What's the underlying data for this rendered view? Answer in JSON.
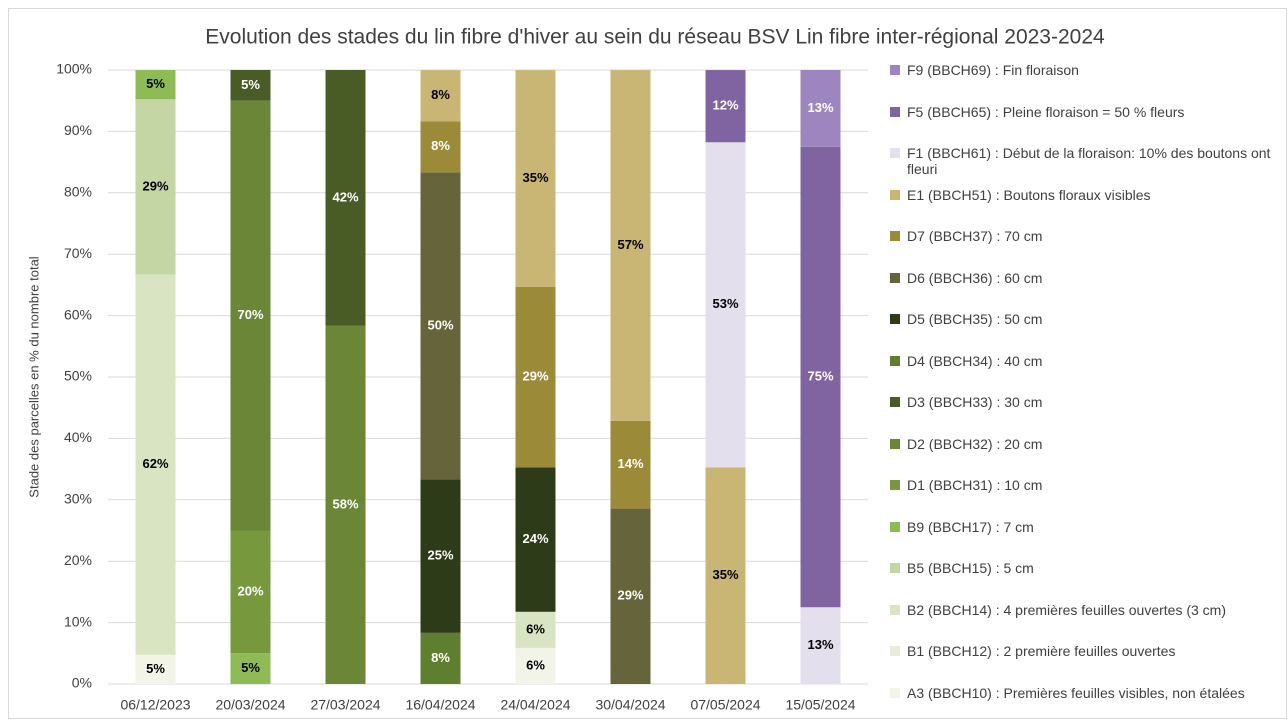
{
  "chart_data": {
    "type": "stacked_bar",
    "title": "Evolution des stades du lin fibre d'hiver au sein du réseau BSV Lin fibre inter-régional 2023-2024",
    "y_label": "Stade des parcelles en % du nombre total",
    "categories": [
      "06/12/2023",
      "20/03/2024",
      "27/03/2024",
      "16/04/2024",
      "24/04/2024",
      "30/04/2024",
      "07/05/2024",
      "15/05/2024"
    ],
    "ylim": [
      0,
      100
    ],
    "yticks": [
      {
        "value": 0,
        "label": "0%"
      },
      {
        "value": 10,
        "label": "10%"
      },
      {
        "value": 20,
        "label": "20%"
      },
      {
        "value": 30,
        "label": "30%"
      },
      {
        "value": 40,
        "label": "40%"
      },
      {
        "value": 50,
        "label": "50%"
      },
      {
        "value": 60,
        "label": "60%"
      },
      {
        "value": 70,
        "label": "70%"
      },
      {
        "value": 80,
        "label": "80%"
      },
      {
        "value": 90,
        "label": "90%"
      },
      {
        "value": 100,
        "label": "100%"
      }
    ],
    "grid": true,
    "legend": "right",
    "series": [
      {
        "name": "F9 (BBCH69) : Fin floraison",
        "color": "#9d86bf",
        "values": [
          null,
          null,
          null,
          null,
          null,
          null,
          null,
          12.5
        ],
        "value_labels": [
          null,
          null,
          null,
          null,
          null,
          null,
          null,
          "13%"
        ]
      },
      {
        "name": "F5 (BBCH65) : Pleine floraison = 50 % fleurs",
        "color": "#8064a2",
        "values": [
          null,
          null,
          null,
          null,
          null,
          null,
          11.76,
          75
        ],
        "value_labels": [
          null,
          null,
          null,
          null,
          null,
          null,
          "12%",
          "75%"
        ]
      },
      {
        "name": "F1 (BBCH61) : Début de la floraison: 10% des boutons ont fleuri",
        "color": "#e4dfec",
        "values": [
          null,
          null,
          null,
          null,
          null,
          null,
          52.94,
          12.5
        ],
        "value_labels": [
          null,
          null,
          null,
          null,
          null,
          null,
          "53%",
          "13%"
        ]
      },
      {
        "name": "E1 (BBCH51) : Boutons floraux visibles",
        "color": "#c9b574",
        "values": [
          null,
          null,
          null,
          8.33,
          35.29,
          57.14,
          35.29,
          null
        ],
        "value_labels": [
          null,
          null,
          null,
          "8%",
          "35%",
          "57%",
          "35%",
          null
        ]
      },
      {
        "name": "D7 (BBCH37) : 70 cm",
        "color": "#9b8a38",
        "values": [
          null,
          null,
          null,
          8.33,
          29.41,
          14.29,
          null,
          null
        ],
        "value_labels": [
          null,
          null,
          null,
          "8%",
          "29%",
          "14%",
          null,
          null
        ]
      },
      {
        "name": "D6 (BBCH36) : 60 cm",
        "color": "#66643b",
        "values": [
          null,
          null,
          null,
          50,
          null,
          28.57,
          null,
          null
        ],
        "value_labels": [
          null,
          null,
          null,
          "50%",
          null,
          "29%",
          null,
          null
        ]
      },
      {
        "name": "D5 (BBCH35) : 50 cm",
        "color": "#2e3b19",
        "values": [
          null,
          null,
          null,
          25,
          23.53,
          null,
          null,
          null
        ],
        "value_labels": [
          null,
          null,
          null,
          "25%",
          "24%",
          null,
          null,
          null
        ]
      },
      {
        "name": "D4 (BBCH34) : 40 cm",
        "color": "#5f7f30",
        "values": [
          null,
          null,
          null,
          8.33,
          null,
          null,
          null,
          null
        ],
        "value_labels": [
          null,
          null,
          null,
          "8%",
          null,
          null,
          null,
          null
        ]
      },
      {
        "name": "D3 (BBCH33) : 30 cm",
        "color": "#4a5c26",
        "values": [
          null,
          5,
          41.67,
          null,
          null,
          null,
          null,
          null
        ],
        "value_labels": [
          null,
          "5%",
          "42%",
          null,
          null,
          null,
          null,
          null
        ]
      },
      {
        "name": "D2 (BBCH32) : 20 cm",
        "color": "#6a8636",
        "values": [
          null,
          70,
          58.33,
          null,
          null,
          null,
          null,
          null
        ],
        "value_labels": [
          null,
          "70%",
          "58%",
          null,
          null,
          null,
          null,
          null
        ]
      },
      {
        "name": "D1 (BBCH31) : 10 cm",
        "color": "#77983c",
        "values": [
          null,
          20,
          null,
          null,
          null,
          null,
          null,
          null
        ],
        "value_labels": [
          null,
          "20%",
          null,
          null,
          null,
          null,
          null,
          null
        ]
      },
      {
        "name": "B9 (BBCH17) : 7 cm",
        "color": "#8fbb57",
        "values": [
          4.76,
          5,
          null,
          null,
          null,
          null,
          null,
          null
        ],
        "value_labels": [
          "5%",
          "5%",
          null,
          null,
          null,
          null,
          null,
          null
        ]
      },
      {
        "name": "B5 (BBCH15) : 5 cm",
        "color": "#c3d6a3",
        "values": [
          28.57,
          null,
          null,
          null,
          null,
          null,
          null,
          null
        ],
        "value_labels": [
          "29%",
          null,
          null,
          null,
          null,
          null,
          null,
          null
        ]
      },
      {
        "name": "B2 (BBCH14) : 4 premières feuilles ouvertes (3 cm)",
        "color": "#d8e4c2",
        "values": [
          61.9,
          null,
          null,
          null,
          5.88,
          null,
          null,
          null
        ],
        "value_labels": [
          "62%",
          null,
          null,
          null,
          "6%",
          null,
          null,
          null
        ]
      },
      {
        "name": "B1 (BBCH12) : 2 première feuilles ouvertes",
        "color": "#e6eed8",
        "values": [
          null,
          null,
          null,
          null,
          null,
          null,
          null,
          null
        ],
        "value_labels": [
          null,
          null,
          null,
          null,
          null,
          null,
          null,
          null
        ]
      },
      {
        "name": "A3 (BBCH10) : Premières feuilles visibles, non étalées",
        "color": "#f3f4e8",
        "values": [
          4.76,
          null,
          null,
          null,
          5.88,
          null,
          null,
          null
        ],
        "value_labels": [
          "5%",
          null,
          null,
          null,
          "6%",
          null,
          null,
          null
        ]
      }
    ]
  }
}
